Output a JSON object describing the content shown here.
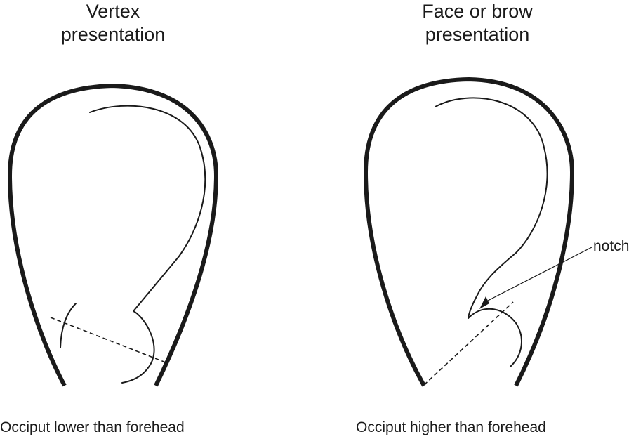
{
  "panels": {
    "left": {
      "title_line1": "Vertex",
      "title_line2": "presentation",
      "caption": "Occiput lower than forehead"
    },
    "right": {
      "title_line1": "Face or brow",
      "title_line2": "presentation",
      "caption": "Occiput higher than forehead",
      "notch_label": "notch"
    }
  },
  "colors": {
    "stroke": "#1a1a1a",
    "background": "#ffffff"
  }
}
